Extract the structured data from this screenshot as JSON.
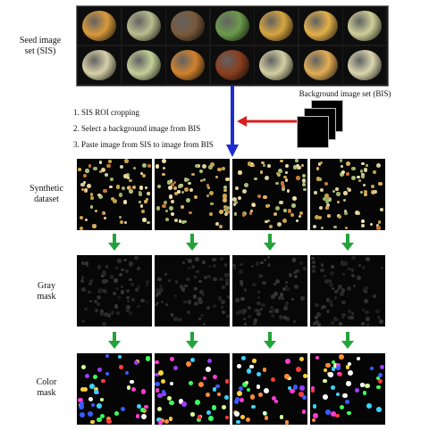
{
  "labels": {
    "seed_set_line1": "Seed image",
    "seed_set_line2": "set (SIS)",
    "background_set": "Background image set (BIS)",
    "synthetic_line1": "Synthetic",
    "synthetic_line2": "dataset",
    "gray_line1": "Gray",
    "gray_line2": "mask",
    "color_line1": "Color",
    "color_line2": "mask"
  },
  "steps": [
    "1. SIS ROI cropping",
    "2. Select a background image from BIS",
    "3. Paste image from SIS to image from BIS"
  ],
  "seeds": [
    "#d99a3c",
    "#b9bd8f",
    "#7a5a3a",
    "#6d9a4c",
    "#d8a640",
    "#e3b04a",
    "#cfcf9a",
    "#d7d1a8",
    "#c5cf98",
    "#d0822e",
    "#8a3e1e",
    "#d4cfa3",
    "#e2ad54",
    "#dad6b0"
  ],
  "colors": {
    "red_arrow": "#d81f1f",
    "blue_arrow": "#1f2bd1",
    "green_arrow": "#23a33a"
  }
}
